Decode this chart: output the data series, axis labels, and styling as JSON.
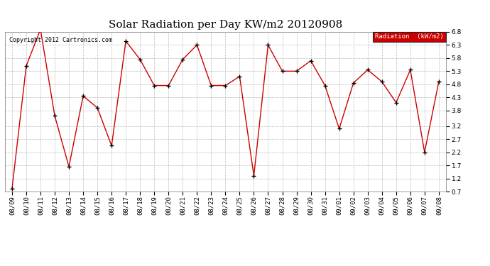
{
  "title": "Solar Radiation per Day KW/m2 20120908",
  "copyright_text": "Copyright 2012 Cartronics.com",
  "legend_label": "Radiation  (kW/m2)",
  "dates": [
    "08/09",
    "08/10",
    "08/11",
    "08/12",
    "08/13",
    "08/14",
    "08/15",
    "08/16",
    "08/17",
    "08/18",
    "08/19",
    "08/20",
    "08/21",
    "08/22",
    "08/23",
    "08/24",
    "08/25",
    "08/26",
    "08/27",
    "08/28",
    "08/29",
    "08/30",
    "08/31",
    "09/01",
    "09/02",
    "09/03",
    "09/04",
    "09/05",
    "09/06",
    "09/07",
    "09/08"
  ],
  "values": [
    0.8,
    5.5,
    6.9,
    3.6,
    1.65,
    4.35,
    3.9,
    2.45,
    6.45,
    5.75,
    4.75,
    4.75,
    5.75,
    6.3,
    4.75,
    4.75,
    5.1,
    1.3,
    6.3,
    5.3,
    5.3,
    5.7,
    4.75,
    3.1,
    4.85,
    5.35,
    4.9,
    4.1,
    5.35,
    2.2,
    4.9
  ],
  "ylim": [
    0.7,
    6.8
  ],
  "yticks": [
    0.7,
    1.2,
    1.7,
    2.2,
    2.7,
    3.2,
    3.8,
    4.3,
    4.8,
    5.3,
    5.8,
    6.3,
    6.8
  ],
  "line_color": "#cc0000",
  "marker_color": "#000000",
  "grid_color": "#bbbbbb",
  "background_color": "#ffffff",
  "title_fontsize": 11,
  "tick_fontsize": 6.5,
  "legend_bg": "#cc0000",
  "legend_text_color": "#ffffff"
}
